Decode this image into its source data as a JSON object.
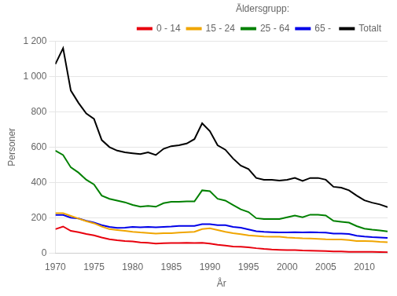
{
  "chart_data": {
    "type": "line",
    "x": [
      1970,
      1971,
      1972,
      1973,
      1974,
      1975,
      1976,
      1977,
      1978,
      1979,
      1980,
      1981,
      1982,
      1983,
      1984,
      1985,
      1986,
      1987,
      1988,
      1989,
      1990,
      1991,
      1992,
      1993,
      1994,
      1995,
      1996,
      1997,
      1998,
      1999,
      2000,
      2001,
      2002,
      2003,
      2004,
      2005,
      2006,
      2007,
      2008,
      2009,
      2010,
      2011,
      2012,
      2013
    ],
    "series": [
      {
        "name": "0 - 14",
        "color": "#e8000d",
        "values": [
          135,
          150,
          125,
          118,
          108,
          100,
          88,
          78,
          72,
          68,
          65,
          60,
          58,
          53,
          55,
          56,
          57,
          58,
          57,
          58,
          53,
          47,
          42,
          37,
          35,
          32,
          27,
          23,
          20,
          18,
          16,
          16,
          14,
          13,
          12,
          11,
          9,
          9,
          7,
          7,
          6,
          6,
          5,
          4
        ]
      },
      {
        "name": "15 - 24",
        "color": "#f0a500",
        "values": [
          225,
          225,
          210,
          195,
          180,
          168,
          150,
          135,
          130,
          125,
          120,
          116,
          113,
          110,
          112,
          112,
          115,
          118,
          120,
          135,
          140,
          130,
          120,
          112,
          107,
          100,
          97,
          93,
          92,
          92,
          88,
          85,
          83,
          82,
          80,
          78,
          77,
          76,
          73,
          68,
          68,
          66,
          63,
          61
        ]
      },
      {
        "name": "25 - 64",
        "color": "#008000",
        "values": [
          580,
          555,
          485,
          455,
          415,
          388,
          325,
          307,
          297,
          287,
          272,
          262,
          267,
          262,
          282,
          290,
          290,
          292,
          292,
          355,
          350,
          307,
          297,
          272,
          247,
          232,
          197,
          192,
          192,
          192,
          202,
          212,
          202,
          217,
          217,
          212,
          182,
          177,
          172,
          152,
          138,
          132,
          128,
          122
        ]
      },
      {
        "name": "65 - ",
        "color": "#0000e8",
        "values": [
          215,
          215,
          200,
          195,
          182,
          172,
          158,
          148,
          142,
          143,
          148,
          145,
          148,
          145,
          148,
          150,
          153,
          153,
          153,
          163,
          163,
          158,
          158,
          148,
          143,
          133,
          123,
          120,
          118,
          116,
          116,
          118,
          116,
          118,
          116,
          115,
          110,
          110,
          108,
          98,
          93,
          90,
          88,
          85
        ]
      },
      {
        "name": "Totalt",
        "color": "#000000",
        "values": [
          1070,
          1160,
          920,
          850,
          790,
          760,
          640,
          600,
          580,
          570,
          565,
          560,
          570,
          555,
          590,
          605,
          610,
          620,
          645,
          735,
          690,
          610,
          585,
          535,
          495,
          475,
          425,
          415,
          415,
          410,
          415,
          425,
          408,
          425,
          425,
          415,
          375,
          370,
          355,
          325,
          298,
          285,
          275,
          260
        ]
      }
    ],
    "legend_title": "Åldersgrupp:",
    "legend": "upper right",
    "x_label": "År",
    "y_label": "Personer",
    "xlim": [
      1970,
      2013
    ],
    "xticks": [
      1970,
      1975,
      1980,
      1985,
      1990,
      1995,
      2000,
      2005,
      2010
    ],
    "ylim": [
      0,
      1200
    ],
    "yticks": [
      0,
      200,
      400,
      600,
      800,
      {
        "value": 1000,
        "label": "1 000"
      },
      {
        "value": 1200,
        "label": "1 200"
      }
    ],
    "grid": true
  }
}
